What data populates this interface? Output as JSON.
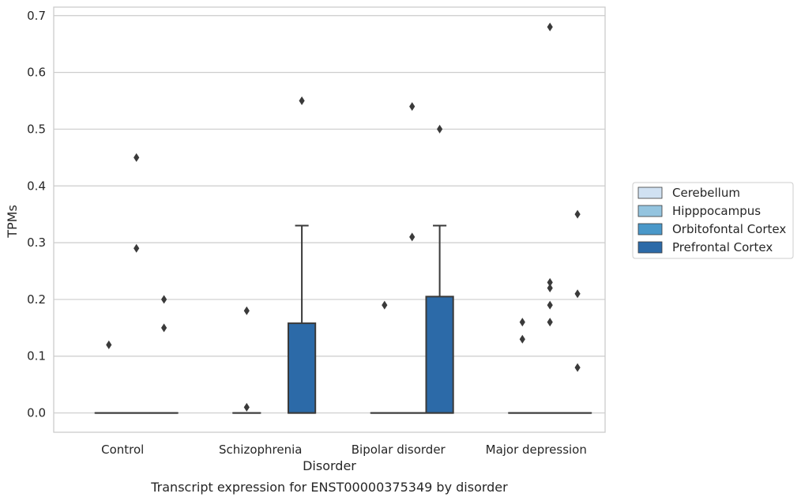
{
  "chart_data": {
    "type": "box",
    "title": "",
    "caption": "Transcript expression for ENST00000375349 by disorder",
    "xlabel": "Disorder",
    "ylabel": "TPMs",
    "ylim": [
      -0.034,
      0.715
    ],
    "yticks": [
      "0.0",
      "0.1",
      "0.2",
      "0.3",
      "0.4",
      "0.5",
      "0.6",
      "0.7"
    ],
    "grid": "horizontal",
    "legend_position": "right",
    "categories": [
      "Control",
      "Schizophrenia",
      "Bipolar disorder",
      "Major depression"
    ],
    "series": [
      {
        "name": "Cerebellum",
        "color": "#d0e1f2",
        "boxes": [
          null,
          null,
          null,
          null
        ],
        "outliers": [
          [],
          [],
          [],
          []
        ]
      },
      {
        "name": "Hipppocampus",
        "color": "#94c4df",
        "boxes": [
          {
            "q1": 0,
            "median": 0,
            "q3": 0,
            "whisker_low": 0,
            "whisker_high": 0
          },
          {
            "q1": 0,
            "median": 0,
            "q3": 0,
            "whisker_low": 0,
            "whisker_high": 0
          },
          {
            "q1": 0,
            "median": 0,
            "q3": 0,
            "whisker_low": 0,
            "whisker_high": 0
          },
          {
            "q1": 0,
            "median": 0,
            "q3": 0,
            "whisker_low": 0,
            "whisker_high": 0
          }
        ],
        "outliers": [
          [
            0.12
          ],
          [
            0.18,
            0.01
          ],
          [
            0.19
          ],
          [
            0.16,
            0.13
          ]
        ]
      },
      {
        "name": "Orbitofontal Cortex",
        "color": "#4a98c9",
        "boxes": [
          {
            "q1": 0,
            "median": 0,
            "q3": 0,
            "whisker_low": 0,
            "whisker_high": 0
          },
          null,
          {
            "q1": 0,
            "median": 0,
            "q3": 0,
            "whisker_low": 0,
            "whisker_high": 0
          },
          {
            "q1": 0,
            "median": 0,
            "q3": 0,
            "whisker_low": 0,
            "whisker_high": 0
          }
        ],
        "outliers": [
          [
            0.29,
            0.45
          ],
          [],
          [
            0.54,
            0.31
          ],
          [
            0.23,
            0.19,
            0.68,
            0.22,
            0.16
          ]
        ]
      },
      {
        "name": "Prefrontal Cortex",
        "color": "#2c6aa8",
        "boxes": [
          {
            "q1": 0,
            "median": 0,
            "q3": 0,
            "whisker_low": 0,
            "whisker_high": 0
          },
          {
            "q1": 0,
            "median": 0,
            "q3": 0.158,
            "whisker_low": 0,
            "whisker_high": 0.33
          },
          {
            "q1": 0,
            "median": 0,
            "q3": 0.205,
            "whisker_low": 0,
            "whisker_high": 0.33
          },
          {
            "q1": 0,
            "median": 0,
            "q3": 0,
            "whisker_low": 0,
            "whisker_high": 0
          }
        ],
        "outliers": [
          [
            0.2,
            0.15
          ],
          [
            0.55
          ],
          [
            0.5
          ],
          [
            0.35,
            0.21,
            0.08
          ]
        ]
      }
    ]
  }
}
